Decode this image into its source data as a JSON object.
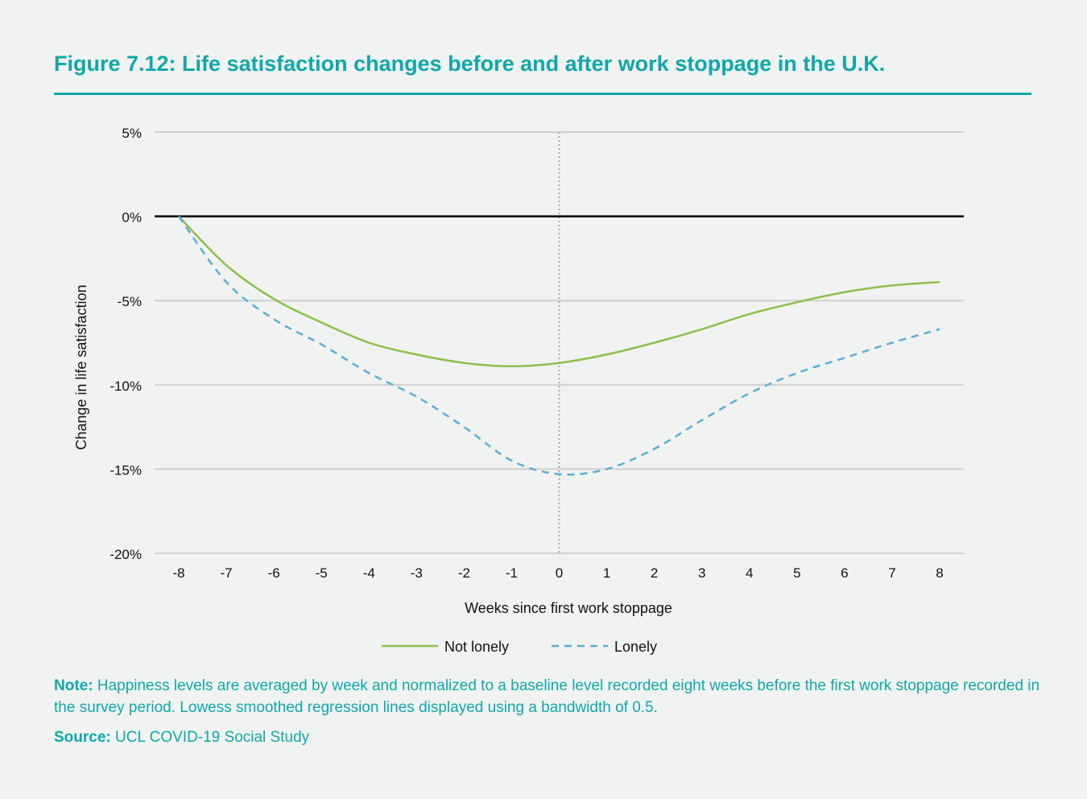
{
  "title": "Figure 7.12: Life satisfaction changes before and after work stoppage in the U.K.",
  "note_label": "Note:",
  "note_text": " Happiness levels are averaged by week and normalized to a baseline level recorded eight weeks before the first work stoppage recorded in the survey period. Lowess smoothed regression lines displayed using a bandwidth of 0.5.",
  "source_label": "Source:",
  "source_text": " UCL COVID-19 Social Study",
  "chart_data": {
    "type": "line",
    "xlabel": "Weeks since first work stoppage",
    "ylabel": "Change in life satisfaction",
    "x": [
      -8,
      -7,
      -6,
      -5,
      -4,
      -3,
      -2,
      -1,
      0,
      1,
      2,
      3,
      4,
      5,
      6,
      7,
      8
    ],
    "xlim": [
      -8,
      8
    ],
    "ylim": [
      -20,
      5
    ],
    "yticks": [
      5,
      0,
      -5,
      -10,
      -15,
      -20
    ],
    "ytick_labels": [
      "5%",
      "0%",
      "-5%",
      "-10%",
      "-15%",
      "-20%"
    ],
    "grid": true,
    "reference_lines": {
      "y": 0,
      "x": 0
    },
    "legend_position": "bottom",
    "series": [
      {
        "name": "Not lonely",
        "color": "#8cc04b",
        "style": "solid",
        "values": [
          0,
          -2.9,
          -4.9,
          -6.3,
          -7.5,
          -8.2,
          -8.7,
          -8.9,
          -8.7,
          -8.2,
          -7.5,
          -6.7,
          -5.8,
          -5.1,
          -4.5,
          -4.1,
          -3.9
        ]
      },
      {
        "name": "Lonely",
        "color": "#5aafd3",
        "style": "dashed",
        "values": [
          0,
          -3.9,
          -6.1,
          -7.6,
          -9.3,
          -10.7,
          -12.5,
          -14.5,
          -15.3,
          -15.0,
          -13.8,
          -12.1,
          -10.5,
          -9.3,
          -8.4,
          -7.5,
          -6.7
        ]
      }
    ]
  }
}
